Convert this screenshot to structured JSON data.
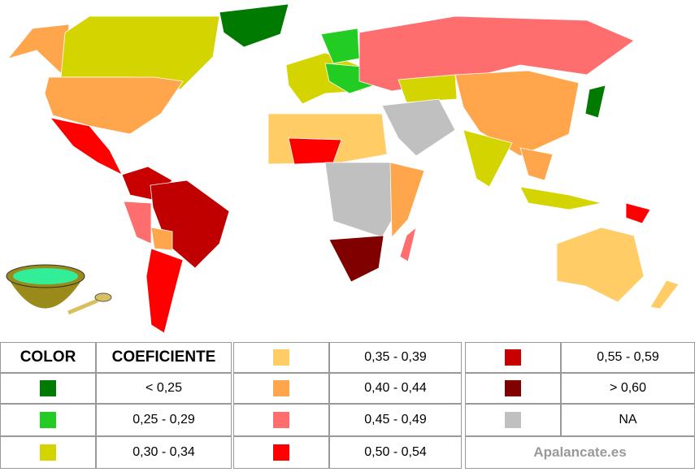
{
  "legend": {
    "header": {
      "color": "COLOR",
      "range": "COEFICIENTE"
    },
    "items": [
      {
        "label": "< 0,25",
        "color": "#007a00"
      },
      {
        "label": "0,25 - 0,29",
        "color": "#22cc22"
      },
      {
        "label": "0,30 - 0,34",
        "color": "#d4d400"
      },
      {
        "label": "0,35 - 0,39",
        "color": "#ffcc66"
      },
      {
        "label": "0,40 - 0,44",
        "color": "#ffa64d"
      },
      {
        "label": "0,45 - 0,49",
        "color": "#ff6e6e"
      },
      {
        "label": "0,50 - 0,54",
        "color": "#ff0000"
      },
      {
        "label": "0,55 - 0,59",
        "color": "#c80000"
      },
      {
        "label": "> 0,60",
        "color": "#800000"
      },
      {
        "label": "NA",
        "color": "#c0c0c0"
      }
    ],
    "credit": "Apalancate.es"
  }
}
